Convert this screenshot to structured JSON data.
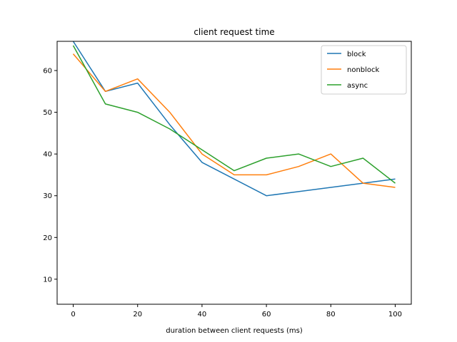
{
  "chart_data": {
    "type": "line",
    "title": "client request time",
    "xlabel": "duration between client requests (ms)",
    "ylabel": "",
    "xlim": [
      -5,
      105
    ],
    "ylim": [
      4,
      67
    ],
    "xticks": [
      0,
      20,
      40,
      60,
      80,
      100
    ],
    "yticks": [
      10,
      20,
      30,
      40,
      50,
      60
    ],
    "grid": false,
    "legend_position": "top-right",
    "series": [
      {
        "name": "block",
        "color": "#1f77b4",
        "x": [
          0,
          10,
          20,
          30,
          40,
          50,
          60,
          70,
          80,
          90,
          100
        ],
        "y": [
          67,
          55,
          57,
          47,
          38,
          34,
          30,
          31,
          32,
          33,
          34
        ]
      },
      {
        "name": "nonblock",
        "color": "#ff7f0e",
        "x": [
          0,
          10,
          20,
          30,
          40,
          50,
          60,
          70,
          80,
          90,
          100
        ],
        "y": [
          64,
          55,
          58,
          50,
          40,
          35,
          35,
          37,
          40,
          33,
          32
        ]
      },
      {
        "name": "async",
        "color": "#2ca02c",
        "x": [
          0,
          10,
          20,
          30,
          40,
          50,
          60,
          70,
          80,
          90,
          100
        ],
        "y": [
          66,
          52,
          50,
          46,
          41,
          36,
          39,
          40,
          37,
          39,
          33
        ]
      }
    ]
  }
}
